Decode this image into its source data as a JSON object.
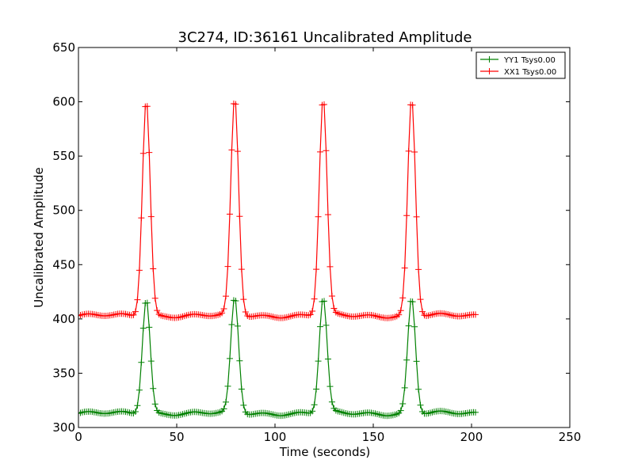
{
  "chart_data": {
    "type": "line",
    "title": "3C274, ID:36161 Uncalibrated Amplitude",
    "xlabel": "Time (seconds)",
    "ylabel": "Uncalibrated Amplitude",
    "xlim": [
      0,
      250
    ],
    "ylim": [
      300,
      650
    ],
    "xticks": [
      0,
      50,
      100,
      150,
      200,
      250
    ],
    "yticks": [
      300,
      350,
      400,
      450,
      500,
      550,
      600,
      650
    ],
    "grid": false,
    "legend_position": "top-right",
    "x_step": 1,
    "series": [
      {
        "name": "YY1 Tsys0.00",
        "color": "#008000",
        "marker": "+",
        "baseline": 313,
        "peak_top": 419,
        "peaks_x": [
          34.5,
          79.5,
          124.5,
          169.5
        ],
        "x_start": 0,
        "x_end": 202
      },
      {
        "name": "XX1 Tsys0.00",
        "color": "#ff0000",
        "marker": "+",
        "baseline": 403,
        "peak_top": 603,
        "peaks_x": [
          34.5,
          79.5,
          124.5,
          169.5
        ],
        "x_start": 0,
        "x_end": 202
      }
    ]
  }
}
